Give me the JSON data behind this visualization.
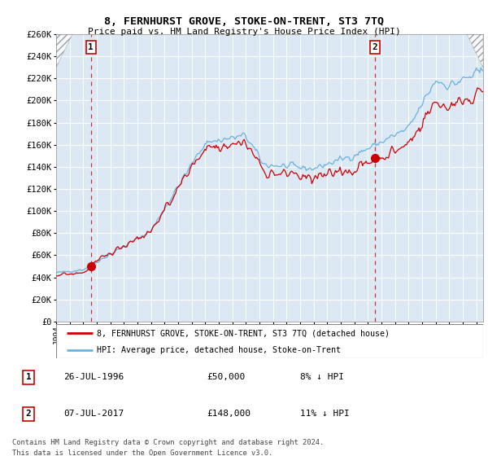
{
  "title": "8, FERNHURST GROVE, STOKE-ON-TRENT, ST3 7TQ",
  "subtitle": "Price paid vs. HM Land Registry's House Price Index (HPI)",
  "ylim": [
    0,
    260000
  ],
  "yticks": [
    0,
    20000,
    40000,
    60000,
    80000,
    100000,
    120000,
    140000,
    160000,
    180000,
    200000,
    220000,
    240000,
    260000
  ],
  "plot_bg_color": "#dce9f5",
  "hpi_color": "#6ab0e0",
  "price_color": "#cc0000",
  "transaction1": {
    "date": 1996.57,
    "price": 50000,
    "label": "1"
  },
  "transaction2": {
    "date": 2017.52,
    "price": 148000,
    "label": "2"
  },
  "legend_label1": "8, FERNHURST GROVE, STOKE-ON-TRENT, ST3 7TQ (detached house)",
  "legend_label2": "HPI: Average price, detached house, Stoke-on-Trent",
  "footnote1": "Contains HM Land Registry data © Crown copyright and database right 2024.",
  "footnote2": "This data is licensed under the Open Government Licence v3.0.",
  "table_rows": [
    {
      "num": "1",
      "date": "26-JUL-1996",
      "price": "£50,000",
      "hpi": "8% ↓ HPI"
    },
    {
      "num": "2",
      "date": "07-JUL-2017",
      "price": "£148,000",
      "hpi": "11% ↓ HPI"
    }
  ],
  "xmin": 1994.0,
  "xmax": 2025.5
}
